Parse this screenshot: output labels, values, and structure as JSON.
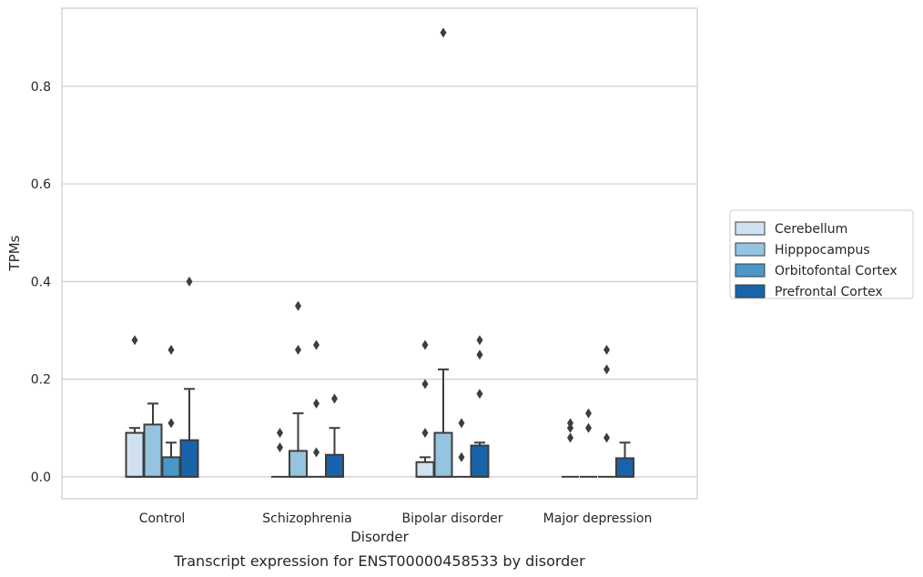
{
  "caption": "Transcript expression for ENST00000458533 by disorder",
  "colors": {
    "Cerebellum": "#d0e1f2",
    "Hipppocampus": "#94c4df",
    "Orbitofontal Cortex": "#4a98c9",
    "Prefrontal Cortex": "#1764ab",
    "box_edge": "#3d3d3d",
    "grid": "#cccccc"
  },
  "chart_data": {
    "type": "bar",
    "xlabel": "Disorder",
    "ylabel": "TPMs",
    "ylim": [
      -0.045,
      0.96
    ],
    "yticks": [
      0.0,
      0.2,
      0.4,
      0.6,
      0.8
    ],
    "ytick_labels": [
      "0.0",
      "0.2",
      "0.4",
      "0.6",
      "0.8"
    ],
    "grid": true,
    "legend_position": "right",
    "categories": [
      "Control",
      "Schizophrenia",
      "Bipolar disorder",
      "Major depression"
    ],
    "series": [
      {
        "name": "Cerebellum",
        "boxes": [
          {
            "q1": 0.0,
            "median": 0.0,
            "q3": 0.09,
            "whisker_high": 0.1,
            "outliers": [
              0.28
            ]
          },
          {
            "q1": 0.0,
            "median": 0.0,
            "q3": 0.0,
            "whisker_high": 0.0,
            "outliers": [
              0.06,
              0.09
            ]
          },
          {
            "q1": 0.0,
            "median": 0.0,
            "q3": 0.03,
            "whisker_high": 0.04,
            "outliers": [
              0.09,
              0.19,
              0.27
            ]
          },
          {
            "q1": 0.0,
            "median": 0.0,
            "q3": 0.0,
            "whisker_high": 0.0,
            "outliers": [
              0.08,
              0.1,
              0.11
            ]
          }
        ]
      },
      {
        "name": "Hipppocampus",
        "boxes": [
          {
            "q1": 0.0,
            "median": 0.0,
            "q3": 0.107,
            "whisker_high": 0.15,
            "outliers": []
          },
          {
            "q1": 0.0,
            "median": 0.0,
            "q3": 0.053,
            "whisker_high": 0.13,
            "outliers": [
              0.26,
              0.35
            ]
          },
          {
            "q1": 0.0,
            "median": 0.0,
            "q3": 0.09,
            "whisker_high": 0.22,
            "outliers": [
              0.91
            ]
          },
          {
            "q1": 0.0,
            "median": 0.0,
            "q3": 0.0,
            "whisker_high": 0.0,
            "outliers": [
              0.1,
              0.13
            ]
          }
        ]
      },
      {
        "name": "Orbitofontal Cortex",
        "boxes": [
          {
            "q1": 0.0,
            "median": 0.0,
            "q3": 0.04,
            "whisker_high": 0.07,
            "outliers": [
              0.11,
              0.26
            ]
          },
          {
            "q1": 0.0,
            "median": 0.0,
            "q3": 0.0,
            "whisker_high": 0.0,
            "outliers": [
              0.05,
              0.15,
              0.27
            ]
          },
          {
            "q1": 0.0,
            "median": 0.0,
            "q3": 0.0,
            "whisker_high": 0.0,
            "outliers": [
              0.04,
              0.11
            ]
          },
          {
            "q1": 0.0,
            "median": 0.0,
            "q3": 0.0,
            "whisker_high": 0.0,
            "outliers": [
              0.08,
              0.22,
              0.26
            ]
          }
        ]
      },
      {
        "name": "Prefrontal Cortex",
        "boxes": [
          {
            "q1": 0.0,
            "median": 0.0,
            "q3": 0.075,
            "whisker_high": 0.18,
            "outliers": [
              0.4
            ]
          },
          {
            "q1": 0.0,
            "median": 0.0,
            "q3": 0.045,
            "whisker_high": 0.1,
            "outliers": [
              0.16
            ]
          },
          {
            "q1": 0.0,
            "median": 0.0,
            "q3": 0.064,
            "whisker_high": 0.07,
            "outliers": [
              0.17,
              0.25,
              0.28
            ]
          },
          {
            "q1": 0.0,
            "median": 0.0,
            "q3": 0.038,
            "whisker_high": 0.07,
            "outliers": []
          }
        ]
      }
    ]
  }
}
